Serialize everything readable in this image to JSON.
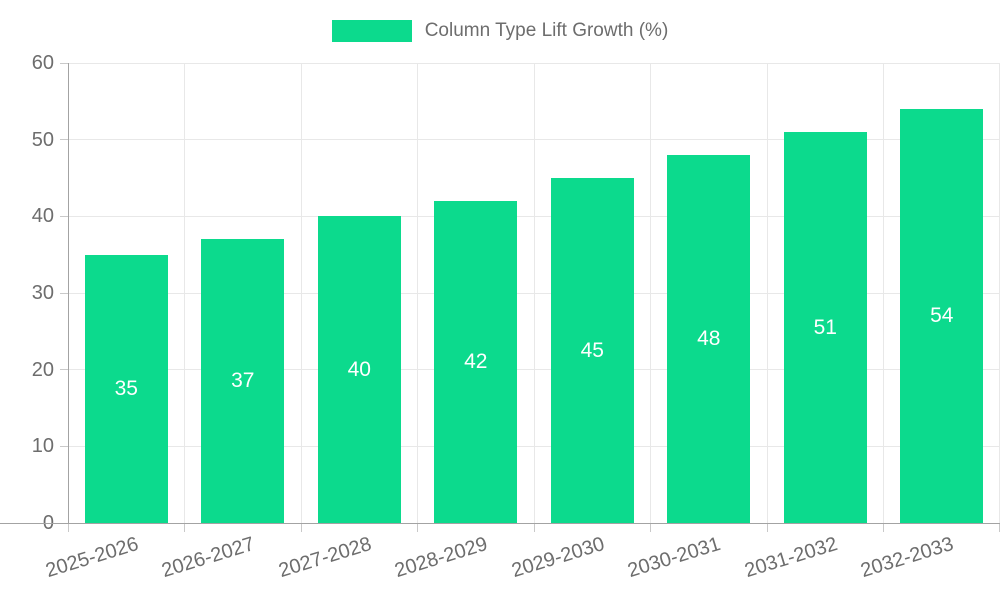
{
  "chart_data": {
    "type": "bar",
    "title": "Column Type Lift Growth (%)",
    "categories": [
      "2025-2026",
      "2026-2027",
      "2027-2028",
      "2028-2029",
      "2029-2030",
      "2030-2031",
      "2031-2032",
      "2032-2033"
    ],
    "values": [
      35,
      37,
      40,
      42,
      45,
      48,
      51,
      54
    ],
    "yticks": [
      0,
      10,
      20,
      30,
      40,
      50,
      60
    ],
    "ylim": [
      0,
      60
    ],
    "xlabel": "",
    "ylabel": "",
    "grid": true,
    "legend_position": "top-center",
    "legend_entries": [
      "Column Type Lift Growth (%)"
    ],
    "colors": {
      "bar": "#0cda8d",
      "bar_label": "#ffffff",
      "axis_text": "#6d6d6d",
      "grid": "#e8e8e8",
      "axis_line": "#a3a3a3",
      "tick": "#c9c9c9",
      "background": "#ffffff"
    }
  }
}
